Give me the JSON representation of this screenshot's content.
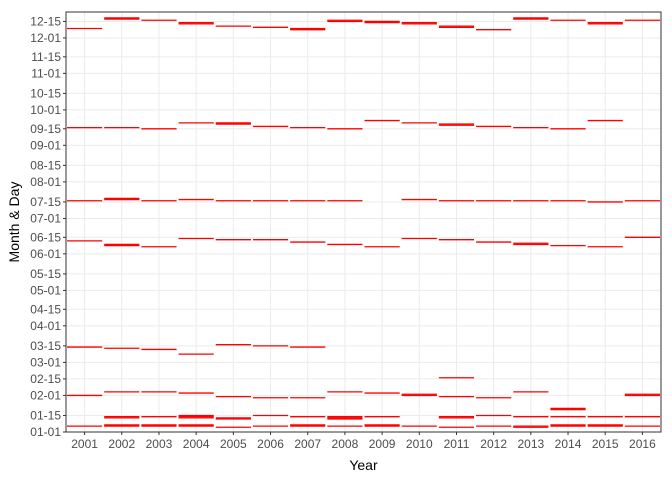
{
  "chart_data": {
    "type": "segment",
    "title": "",
    "xlabel": "Year",
    "ylabel": "Month & Day",
    "grid": true,
    "colors": {
      "segment": "#ff0000",
      "grid": "#ebebeb",
      "frame": "#333333",
      "background": "#ffffff"
    },
    "categories": [
      "2001",
      "2002",
      "2003",
      "2004",
      "2005",
      "2006",
      "2007",
      "2008",
      "2009",
      "2010",
      "2011",
      "2012",
      "2013",
      "2014",
      "2015",
      "2016"
    ],
    "y_ticks": [
      {
        "label": "01-01",
        "doy": 1
      },
      {
        "label": "01-15",
        "doy": 15
      },
      {
        "label": "02-01",
        "doy": 32
      },
      {
        "label": "02-15",
        "doy": 46
      },
      {
        "label": "03-01",
        "doy": 60
      },
      {
        "label": "03-15",
        "doy": 74
      },
      {
        "label": "04-01",
        "doy": 91
      },
      {
        "label": "04-15",
        "doy": 105
      },
      {
        "label": "05-01",
        "doy": 121
      },
      {
        "label": "05-15",
        "doy": 135
      },
      {
        "label": "06-01",
        "doy": 152
      },
      {
        "label": "06-15",
        "doy": 166
      },
      {
        "label": "07-01",
        "doy": 182
      },
      {
        "label": "07-15",
        "doy": 196
      },
      {
        "label": "08-01",
        "doy": 213
      },
      {
        "label": "08-15",
        "doy": 227
      },
      {
        "label": "09-01",
        "doy": 244
      },
      {
        "label": "09-15",
        "doy": 258
      },
      {
        "label": "10-01",
        "doy": 274
      },
      {
        "label": "10-15",
        "doy": 288
      },
      {
        "label": "11-01",
        "doy": 305
      },
      {
        "label": "11-15",
        "doy": 319
      },
      {
        "label": "12-01",
        "doy": 335
      },
      {
        "label": "12-15",
        "doy": 349
      }
    ],
    "ylim": [
      1,
      357
    ],
    "events": [
      {
        "year": "2001",
        "doy": [
          6,
          32,
          73,
          163,
          197,
          259,
          343
        ]
      },
      {
        "year": "2002",
        "doy": [
          6,
          7,
          13,
          14,
          35,
          72,
          159,
          160,
          198,
          199,
          259,
          351,
          352
        ]
      },
      {
        "year": "2003",
        "doy": [
          6,
          7,
          14,
          35,
          71,
          158,
          197,
          258,
          350
        ]
      },
      {
        "year": "2004",
        "doy": [
          6,
          7,
          13,
          14,
          15,
          34,
          67,
          165,
          198,
          263,
          347,
          348
        ]
      },
      {
        "year": "2005",
        "doy": [
          5,
          12,
          13,
          31,
          75,
          164,
          197,
          262,
          263,
          345
        ]
      },
      {
        "year": "2006",
        "doy": [
          6,
          15,
          30,
          74,
          164,
          197,
          260,
          344
        ]
      },
      {
        "year": "2007",
        "doy": [
          6,
          7,
          14,
          30,
          73,
          162,
          197,
          259,
          342,
          343
        ]
      },
      {
        "year": "2008",
        "doy": [
          6,
          12,
          13,
          14,
          35,
          160,
          197,
          258,
          349,
          350
        ]
      },
      {
        "year": "2009",
        "doy": [
          6,
          7,
          14,
          34,
          158,
          265,
          348,
          349
        ]
      },
      {
        "year": "2010",
        "doy": [
          6,
          32,
          33,
          165,
          198,
          263,
          347,
          348
        ]
      },
      {
        "year": "2011",
        "doy": [
          5,
          13,
          14,
          31,
          47,
          164,
          197,
          261,
          262,
          344,
          345
        ]
      },
      {
        "year": "2012",
        "doy": [
          6,
          15,
          30,
          162,
          197,
          260,
          342
        ]
      },
      {
        "year": "2013",
        "doy": [
          5,
          6,
          14,
          35,
          160,
          161,
          197,
          259,
          351,
          352
        ]
      },
      {
        "year": "2014",
        "doy": [
          6,
          7,
          14,
          20,
          21,
          159,
          197,
          258,
          350
        ]
      },
      {
        "year": "2015",
        "doy": [
          6,
          7,
          14,
          158,
          196,
          265,
          347,
          348
        ]
      },
      {
        "year": "2016",
        "doy": [
          6,
          14,
          32,
          33,
          166,
          197,
          350
        ]
      }
    ]
  }
}
